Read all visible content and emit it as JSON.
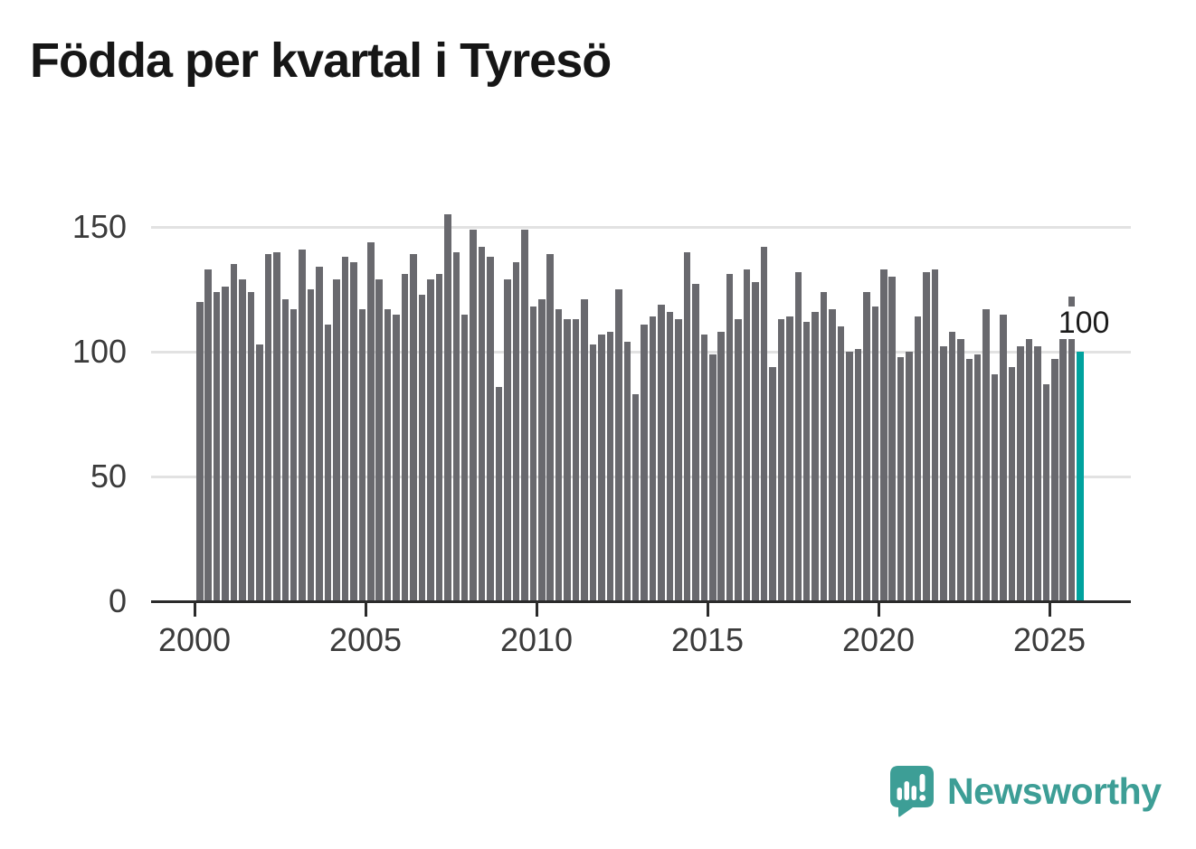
{
  "title": "Födda per kvartal i Tyresö",
  "branding": {
    "logo_text": "Newsworthy",
    "logo_color": "#3d9e96"
  },
  "chart_data": {
    "type": "bar",
    "title": "Födda per kvartal i Tyresö",
    "xlabel": "",
    "ylabel": "",
    "ylim": [
      0,
      160
    ],
    "grid": "horizontal gridlines at 50, 100, 150",
    "legend_position": "none",
    "y_ticks": [
      0,
      50,
      100,
      150
    ],
    "x_tick_years": [
      2000,
      2005,
      2010,
      2015,
      2020,
      2025
    ],
    "bar_color": "#69696e",
    "highlight_color": "#00a29e",
    "highlighted_index": 103,
    "annotation": {
      "text": "100",
      "applies_to": "2025 Q4 (highlighted bar)"
    },
    "categories": [
      "2000 Q1",
      "2000 Q2",
      "2000 Q3",
      "2000 Q4",
      "2001 Q1",
      "2001 Q2",
      "2001 Q3",
      "2001 Q4",
      "2002 Q1",
      "2002 Q2",
      "2002 Q3",
      "2002 Q4",
      "2003 Q1",
      "2003 Q2",
      "2003 Q3",
      "2003 Q4",
      "2004 Q1",
      "2004 Q2",
      "2004 Q3",
      "2004 Q4",
      "2005 Q1",
      "2005 Q2",
      "2005 Q3",
      "2005 Q4",
      "2006 Q1",
      "2006 Q2",
      "2006 Q3",
      "2006 Q4",
      "2007 Q1",
      "2007 Q2",
      "2007 Q3",
      "2007 Q4",
      "2008 Q1",
      "2008 Q2",
      "2008 Q3",
      "2008 Q4",
      "2009 Q1",
      "2009 Q2",
      "2009 Q3",
      "2009 Q4",
      "2010 Q1",
      "2010 Q2",
      "2010 Q3",
      "2010 Q4",
      "2011 Q1",
      "2011 Q2",
      "2011 Q3",
      "2011 Q4",
      "2012 Q1",
      "2012 Q2",
      "2012 Q3",
      "2012 Q4",
      "2013 Q1",
      "2013 Q2",
      "2013 Q3",
      "2013 Q4",
      "2014 Q1",
      "2014 Q2",
      "2014 Q3",
      "2014 Q4",
      "2015 Q1",
      "2015 Q2",
      "2015 Q3",
      "2015 Q4",
      "2016 Q1",
      "2016 Q2",
      "2016 Q3",
      "2016 Q4",
      "2017 Q1",
      "2017 Q2",
      "2017 Q3",
      "2017 Q4",
      "2018 Q1",
      "2018 Q2",
      "2018 Q3",
      "2018 Q4",
      "2019 Q1",
      "2019 Q2",
      "2019 Q3",
      "2019 Q4",
      "2020 Q1",
      "2020 Q2",
      "2020 Q3",
      "2020 Q4",
      "2021 Q1",
      "2021 Q2",
      "2021 Q3",
      "2021 Q4",
      "2022 Q1",
      "2022 Q2",
      "2022 Q3",
      "2022 Q4",
      "2023 Q1",
      "2023 Q2",
      "2023 Q3",
      "2023 Q4",
      "2024 Q1",
      "2024 Q2",
      "2024 Q3",
      "2024 Q4",
      "2025 Q1",
      "2025 Q2",
      "2025 Q3",
      "2025 Q4"
    ],
    "values": [
      120,
      133,
      124,
      126,
      135,
      129,
      124,
      103,
      139,
      140,
      121,
      117,
      141,
      125,
      134,
      111,
      129,
      138,
      136,
      117,
      144,
      129,
      117,
      115,
      131,
      139,
      123,
      129,
      131,
      155,
      140,
      115,
      149,
      142,
      138,
      86,
      129,
      136,
      149,
      118,
      121,
      139,
      117,
      113,
      113,
      121,
      103,
      107,
      108,
      125,
      104,
      83,
      111,
      114,
      119,
      116,
      113,
      140,
      127,
      107,
      99,
      108,
      131,
      113,
      133,
      128,
      142,
      94,
      113,
      114,
      132,
      112,
      116,
      124,
      117,
      110,
      100,
      101,
      124,
      118,
      133,
      130,
      98,
      100,
      114,
      132,
      133,
      102,
      108,
      105,
      97,
      99,
      117,
      91,
      115,
      94,
      102,
      105,
      102,
      87,
      97,
      105,
      122,
      100
    ]
  }
}
